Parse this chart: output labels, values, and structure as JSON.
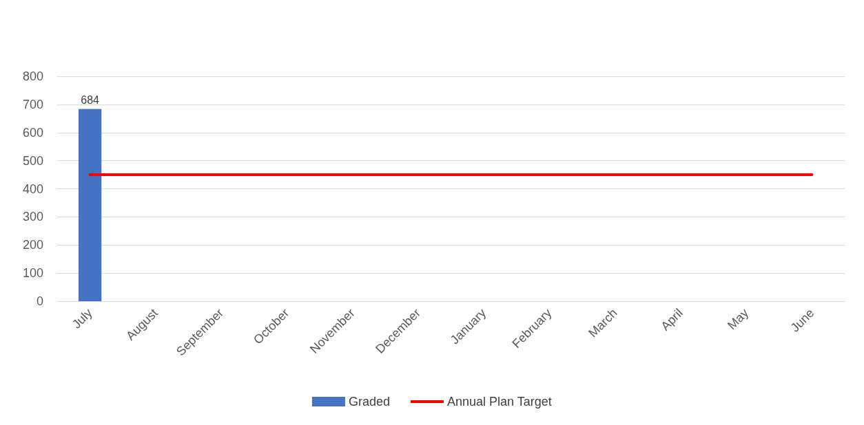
{
  "chart_data": {
    "type": "bar",
    "categories": [
      "July",
      "August",
      "September",
      "October",
      "November",
      "December",
      "January",
      "February",
      "March",
      "April",
      "May",
      "June"
    ],
    "series": [
      {
        "name": "Graded",
        "color": "#4472c4",
        "values": [
          684,
          null,
          null,
          null,
          null,
          null,
          null,
          null,
          null,
          null,
          null,
          null
        ],
        "value_labels": [
          "684",
          null,
          null,
          null,
          null,
          null,
          null,
          null,
          null,
          null,
          null,
          null
        ]
      },
      {
        "name": "Annual Plan Target",
        "type": "line",
        "color": "#ff0000",
        "values": [
          450,
          450,
          450,
          450,
          450,
          450,
          450,
          450,
          450,
          450,
          450,
          450
        ],
        "marker": "none",
        "line_style": "solid"
      }
    ],
    "ylim": [
      0,
      800
    ],
    "yticks": [
      0,
      100,
      200,
      300,
      400,
      500,
      600,
      700,
      800
    ],
    "grid": "y",
    "legend": "bottom"
  }
}
